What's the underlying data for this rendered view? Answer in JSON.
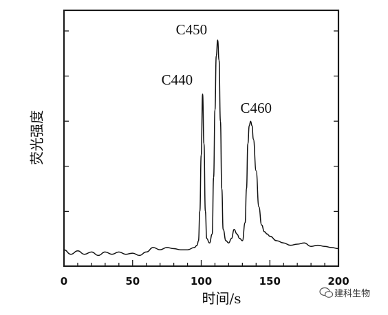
{
  "chart_data": {
    "type": "line",
    "title": "",
    "xlabel": "时间/s",
    "ylabel": "荧光强度",
    "xlim": [
      0,
      200
    ],
    "ylim": [
      0,
      1.0
    ],
    "x_ticks": [
      0,
      50,
      100,
      150,
      200
    ],
    "y_ticks_unlabeled": [
      0.2,
      0.4,
      0.6,
      0.8,
      1.0
    ],
    "grid": false,
    "legend": "none",
    "series": [
      {
        "x": [
          0,
          5,
          10,
          15,
          20,
          25,
          30,
          35,
          40,
          45,
          50,
          55,
          60,
          65,
          70,
          75,
          80,
          85,
          90,
          95,
          97,
          98,
          99,
          100,
          101,
          102,
          103,
          104,
          106,
          108,
          109,
          110,
          111,
          112,
          113,
          114,
          115,
          116,
          118,
          120,
          122,
          124,
          126,
          128,
          130,
          132,
          133,
          134,
          135,
          136,
          137,
          138,
          140,
          142,
          144,
          146,
          148,
          150,
          155,
          160,
          165,
          170,
          175,
          180,
          185,
          190,
          195,
          200
        ],
        "y": [
          0.03,
          0.01,
          0.025,
          0.01,
          0.02,
          0.005,
          0.02,
          0.01,
          0.02,
          0.01,
          0.015,
          0.005,
          0.02,
          0.04,
          0.03,
          0.04,
          0.035,
          0.03,
          0.03,
          0.04,
          0.05,
          0.07,
          0.2,
          0.45,
          0.72,
          0.5,
          0.2,
          0.08,
          0.06,
          0.1,
          0.35,
          0.65,
          0.89,
          0.96,
          0.87,
          0.6,
          0.3,
          0.12,
          0.07,
          0.06,
          0.08,
          0.12,
          0.1,
          0.08,
          0.07,
          0.15,
          0.3,
          0.5,
          0.58,
          0.6,
          0.58,
          0.52,
          0.38,
          0.22,
          0.14,
          0.11,
          0.1,
          0.09,
          0.07,
          0.06,
          0.05,
          0.055,
          0.06,
          0.045,
          0.05,
          0.045,
          0.04,
          0.035
        ]
      }
    ],
    "annotations": [
      {
        "text": "C440",
        "x": 100.8,
        "y": 0.72
      },
      {
        "text": "C450",
        "x": 112,
        "y": 0.96
      },
      {
        "text": "C460",
        "x": 136,
        "y": 0.6
      }
    ]
  },
  "watermark": {
    "text": "建科生物"
  }
}
